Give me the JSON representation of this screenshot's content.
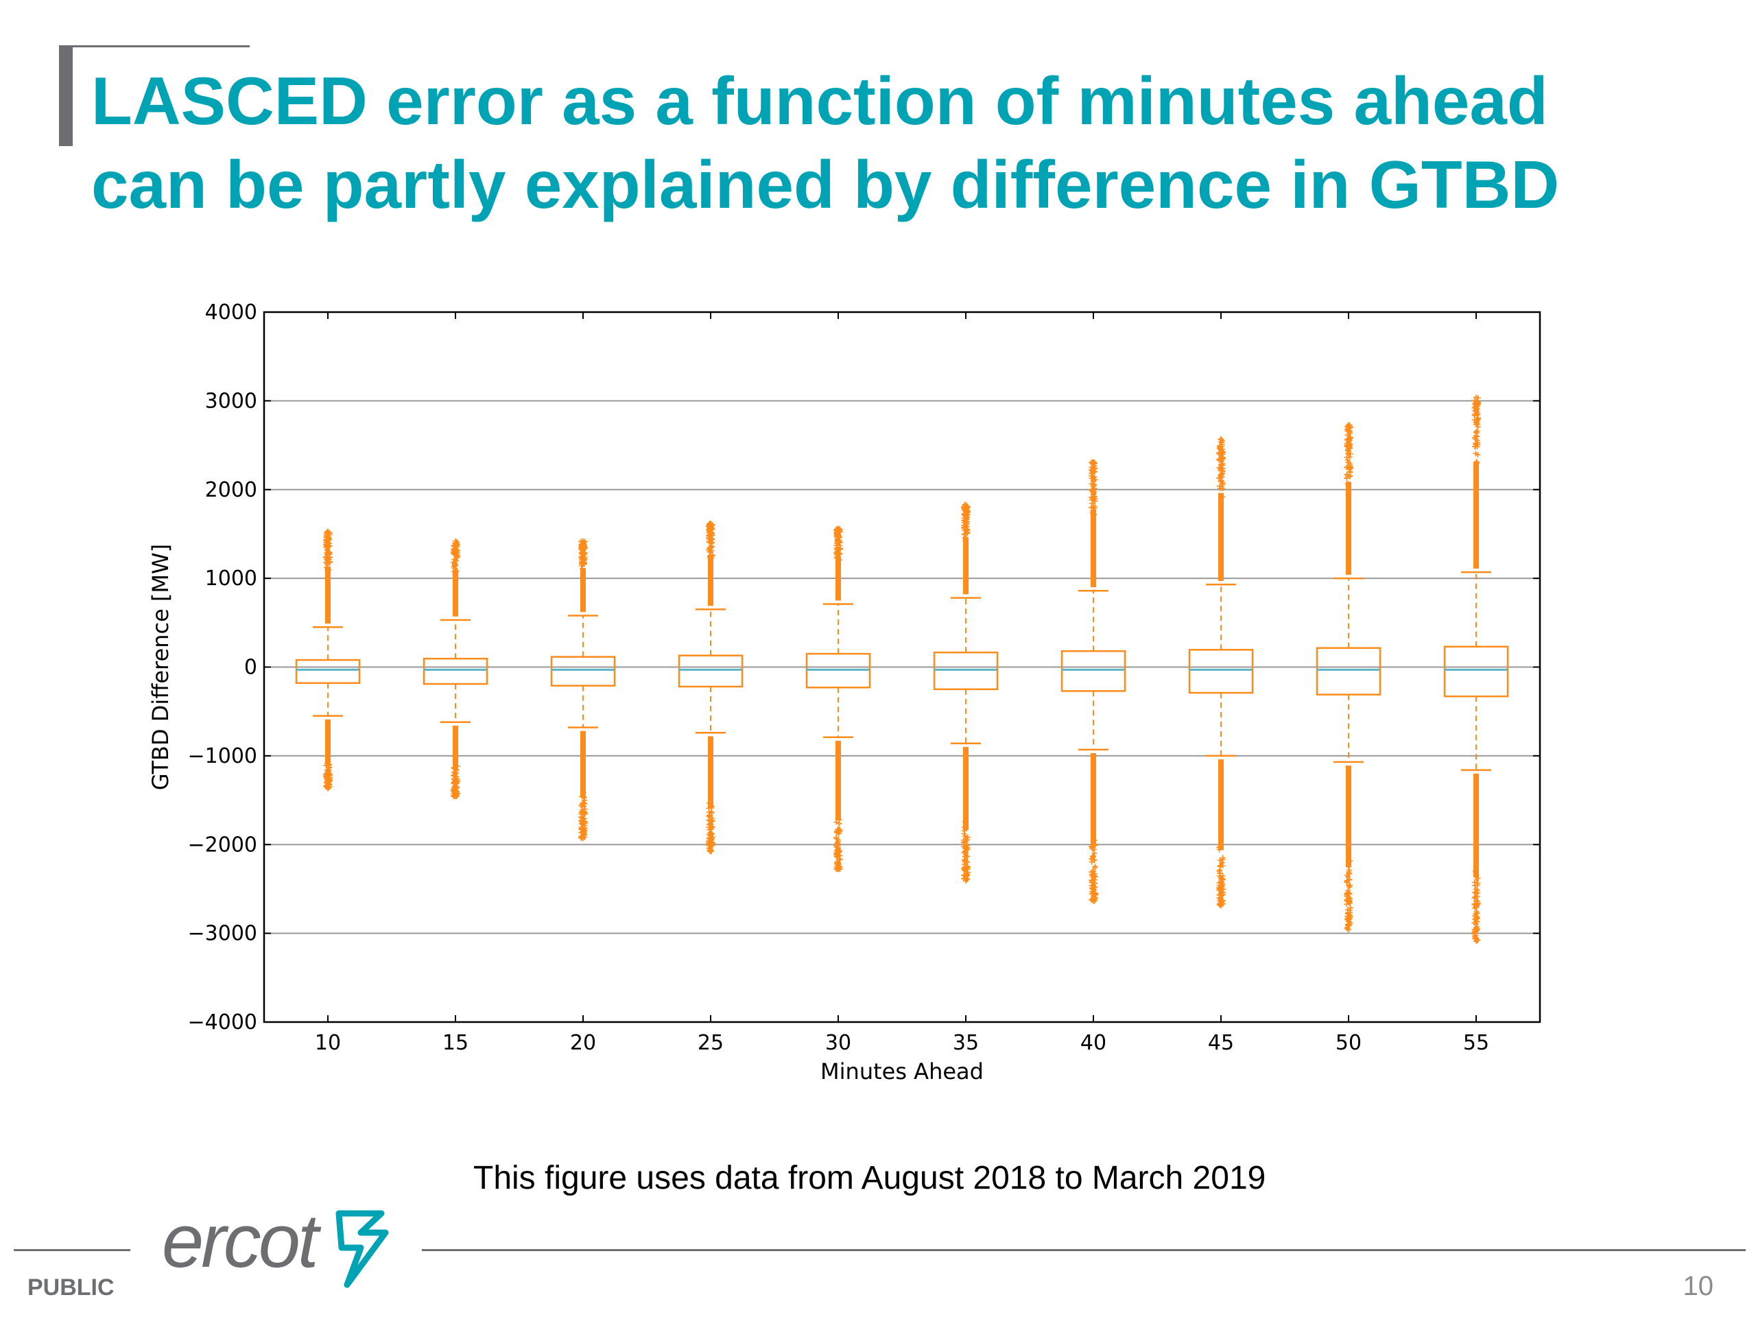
{
  "slide": {
    "title_line1": "LASCED error as a function of minutes ahead",
    "title_line2": "can be partly explained by difference in GTBD",
    "caption": "This figure uses data from August 2018 to March 2019",
    "footer_label": "PUBLIC",
    "page_number": "10",
    "logo_text": "ercot",
    "accent_color": "#00a3b4",
    "footer_color": "#6d6e71"
  },
  "chart_data": {
    "type": "box",
    "title": "",
    "xlabel": "Minutes Ahead",
    "ylabel": "GTBD Difference [MW]",
    "ylim": [
      -4000,
      4000
    ],
    "yticks": [
      4000,
      3000,
      2000,
      1000,
      0,
      -1000,
      -2000,
      -3000,
      -4000
    ],
    "ytick_labels": [
      "4000",
      "3000",
      "2000",
      "1000",
      "0",
      "−1000",
      "−2000",
      "−3000",
      "−4000"
    ],
    "grid": "horizontal",
    "box_color": "#ff8c1a",
    "median_color": "#5fb3c6",
    "categories": [
      10,
      15,
      20,
      25,
      30,
      35,
      40,
      45,
      50,
      55
    ],
    "boxes": [
      {
        "x": 10,
        "q1": -180,
        "median": -30,
        "q3": 80,
        "whisker_low": -550,
        "whisker_high": 450,
        "flier_min": -1370,
        "flier_max": 1530
      },
      {
        "x": 15,
        "q1": -190,
        "median": -30,
        "q3": 95,
        "whisker_low": -620,
        "whisker_high": 530,
        "flier_min": -1460,
        "flier_max": 1420
      },
      {
        "x": 20,
        "q1": -210,
        "median": -30,
        "q3": 115,
        "whisker_low": -680,
        "whisker_high": 580,
        "flier_min": -1930,
        "flier_max": 1420
      },
      {
        "x": 25,
        "q1": -220,
        "median": -30,
        "q3": 130,
        "whisker_low": -740,
        "whisker_high": 650,
        "flier_min": -2080,
        "flier_max": 1620
      },
      {
        "x": 30,
        "q1": -230,
        "median": -30,
        "q3": 150,
        "whisker_low": -790,
        "whisker_high": 710,
        "flier_min": -2280,
        "flier_max": 1560
      },
      {
        "x": 35,
        "q1": -250,
        "median": -30,
        "q3": 165,
        "whisker_low": -860,
        "whisker_high": 780,
        "flier_min": -2410,
        "flier_max": 1830
      },
      {
        "x": 40,
        "q1": -270,
        "median": -30,
        "q3": 180,
        "whisker_low": -930,
        "whisker_high": 860,
        "flier_min": -2640,
        "flier_max": 2310
      },
      {
        "x": 45,
        "q1": -290,
        "median": -30,
        "q3": 195,
        "whisker_low": -1000,
        "whisker_high": 930,
        "flier_min": -2690,
        "flier_max": 2570
      },
      {
        "x": 50,
        "q1": -310,
        "median": -30,
        "q3": 215,
        "whisker_low": -1070,
        "whisker_high": 1000,
        "flier_min": -2960,
        "flier_max": 2730
      },
      {
        "x": 55,
        "q1": -330,
        "median": -30,
        "q3": 230,
        "whisker_low": -1160,
        "whisker_high": 1070,
        "flier_min": -3090,
        "flier_max": 3040
      }
    ]
  }
}
